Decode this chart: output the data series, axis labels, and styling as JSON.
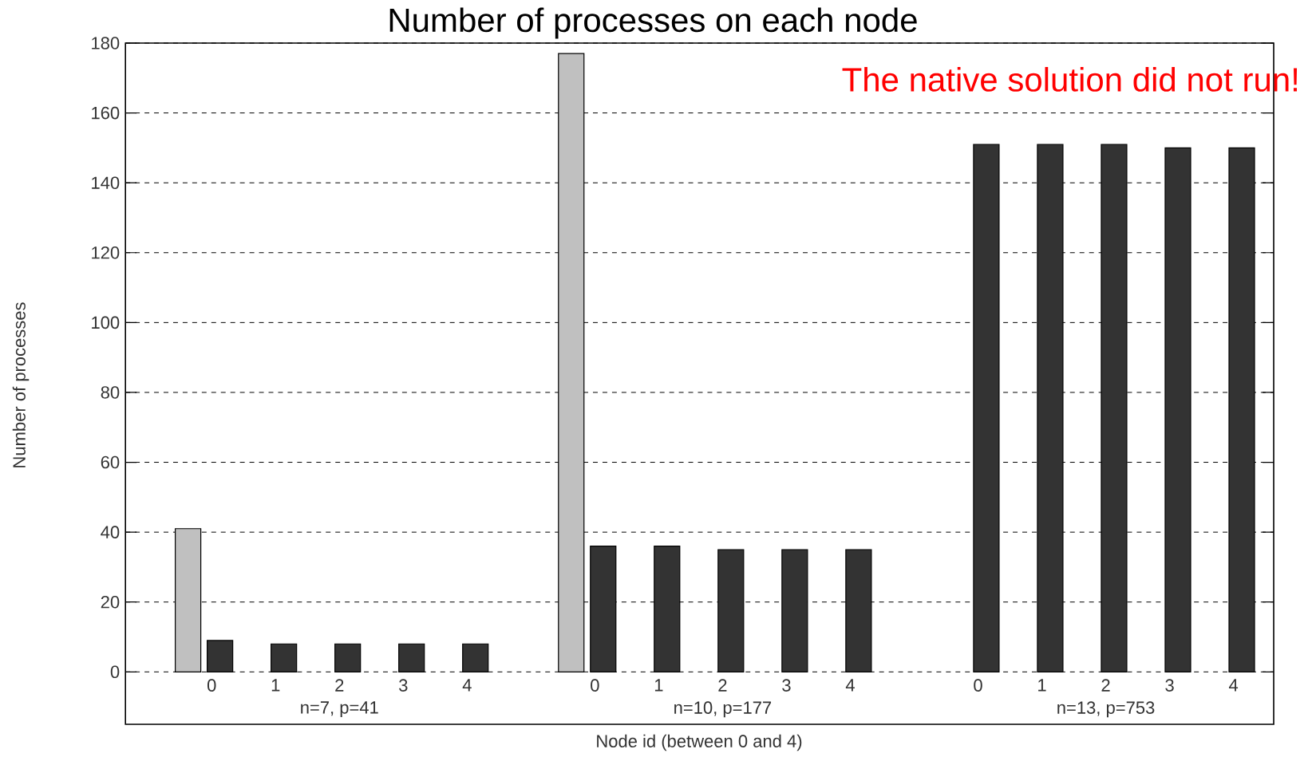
{
  "chart_data": {
    "type": "bar",
    "title": "Number of processes on each node",
    "xlabel": "Node id (between 0 and 4)",
    "ylabel": "Number of processes",
    "categories": [
      "0",
      "1",
      "2",
      "3",
      "4",
      null,
      "0",
      "1",
      "2",
      "3",
      "4",
      null,
      "0",
      "1",
      "2",
      "3",
      "4"
    ],
    "series": [
      {
        "color": "#c0c0c0",
        "values": [
          41,
          null,
          null,
          null,
          null,
          null,
          177,
          null,
          null,
          null,
          null,
          null,
          null,
          null,
          null,
          null,
          null
        ]
      },
      {
        "color": "#333333",
        "values": [
          9,
          8,
          8,
          8,
          8,
          null,
          36,
          36,
          35,
          35,
          35,
          null,
          151,
          151,
          151,
          150,
          150
        ]
      }
    ],
    "ylim": [
      -15,
      180
    ],
    "yticks": [
      0,
      20,
      40,
      60,
      80,
      100,
      120,
      140,
      160,
      180
    ],
    "grid": "y",
    "annotations": [
      "n=7, p=41",
      "n=10, p=177",
      "n=13, p=753",
      "The native solution did not run!"
    ]
  }
}
